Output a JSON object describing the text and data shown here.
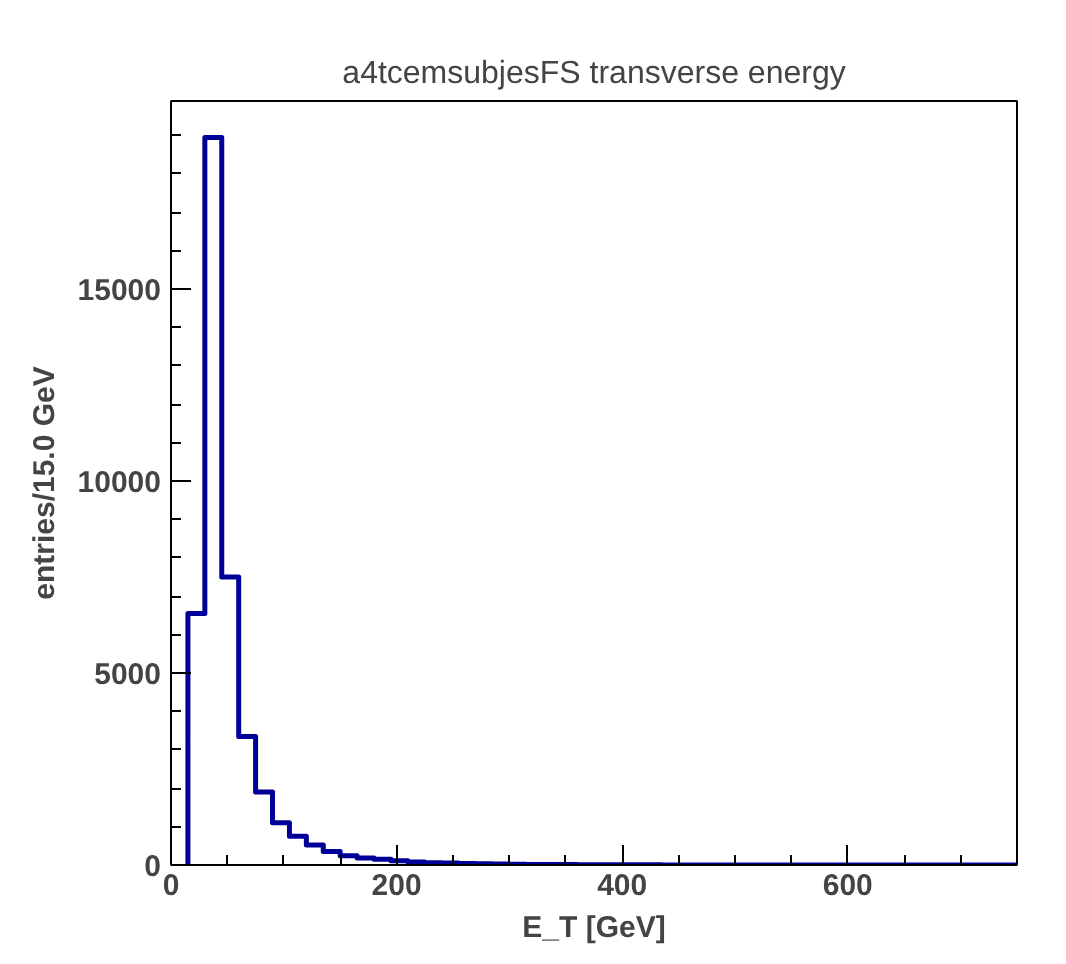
{
  "chart_data": {
    "type": "histogram",
    "title": "a4tcemsubjesFS transverse energy",
    "xlabel": "E_T [GeV]",
    "ylabel": "entries/15.0 GeV",
    "bins": [
      15,
      30,
      45,
      60,
      75,
      90,
      105,
      120,
      135,
      150,
      165,
      180,
      195,
      210,
      225,
      240,
      255,
      270,
      285,
      300,
      315,
      330,
      345,
      360,
      375,
      390,
      405,
      420,
      435,
      450,
      465,
      480,
      495,
      510,
      525,
      540,
      555,
      570,
      585,
      600,
      615,
      630,
      645,
      660,
      675,
      690,
      705,
      720,
      735,
      750
    ],
    "values": [
      6550,
      18950,
      7500,
      3350,
      1900,
      1100,
      750,
      520,
      350,
      240,
      180,
      150,
      110,
      80,
      60,
      50,
      40,
      30,
      25,
      20,
      10,
      10,
      10,
      5,
      5,
      5,
      5,
      5,
      0,
      0,
      0,
      0,
      0,
      0,
      0,
      0,
      0,
      0,
      0,
      0,
      0,
      0,
      0,
      0,
      0,
      0,
      0,
      0,
      0
    ],
    "color": "#000099",
    "xlim": [
      0,
      750
    ],
    "ylim": [
      0,
      19900
    ],
    "xticks": [
      0,
      200,
      400,
      600
    ],
    "yticks": [
      0,
      5000,
      10000,
      15000
    ],
    "grid": false
  }
}
